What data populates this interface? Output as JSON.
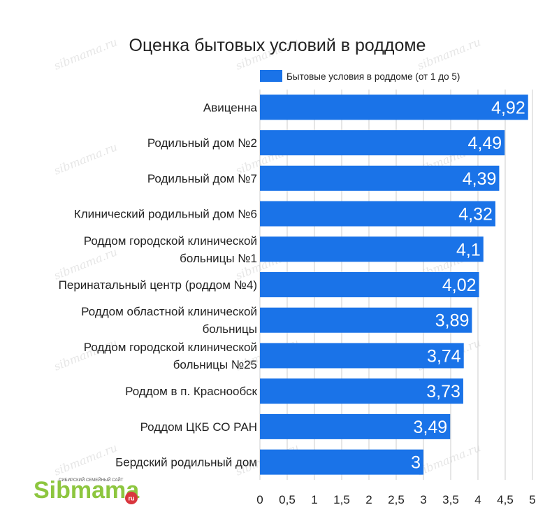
{
  "chart_data": {
    "type": "bar",
    "orientation": "horizontal",
    "title": "Оценка бытовых условий в роддоме",
    "xlabel": "",
    "ylabel": "",
    "categories": [
      "Авиценна",
      "Родильный дом №2",
      "Родильный дом №7",
      "Клинический родильный дом №6",
      "Роддом городской клинической больницы №1",
      "Перинатальный центр (роддом №4)",
      "Роддом областной клинической больницы",
      "Роддом городской клинической больницы №25",
      "Роддом в п. Краснообск",
      "Роддом ЦКБ СО РАН",
      "Бердский родильный дом"
    ],
    "category_lines": [
      [
        "Авиценна"
      ],
      [
        "Родильный дом №2"
      ],
      [
        "Родильный дом №7"
      ],
      [
        "Клинический родильный дом №6"
      ],
      [
        "Роддом городской клинической",
        "больницы №1"
      ],
      [
        "Перинатальный центр (роддом №4)"
      ],
      [
        "Роддом областной клинической",
        "больницы"
      ],
      [
        "Роддом городской клинической",
        "больницы №25"
      ],
      [
        "Роддом в п. Краснообск"
      ],
      [
        "Роддом ЦКБ СО РАН"
      ],
      [
        "Бердский родильный дом"
      ]
    ],
    "series": [
      {
        "name": "Бытовые условия в роддоме (от 1 до 5)",
        "values": [
          4.92,
          4.49,
          4.39,
          4.32,
          4.1,
          4.02,
          3.89,
          3.74,
          3.73,
          3.49,
          3
        ],
        "value_labels": [
          "4,92",
          "4,49",
          "4,39",
          "4,32",
          "4,1",
          "4,02",
          "3,89",
          "3,74",
          "3,73",
          "3,49",
          "3"
        ]
      }
    ],
    "xlim": [
      0,
      5
    ],
    "x_ticks": [
      0,
      0.5,
      1,
      1.5,
      2,
      2.5,
      3,
      3.5,
      4,
      4.5,
      5
    ],
    "x_tick_labels": [
      "0",
      "0,5",
      "1",
      "1,5",
      "2",
      "2,5",
      "3",
      "3,5",
      "4",
      "4,5",
      "5"
    ],
    "grid": true,
    "legend": "top-right",
    "colors": {
      "bar": "#1a73e8",
      "grid": "#cccccc",
      "text": "#222222",
      "value_label": "#ffffff"
    }
  },
  "branding": {
    "logo_text": "Sibmama",
    "logo_tagline": "СИБИРСКИЙ СЕМЕЙНЫЙ САЙТ",
    "logo_domain": "ru",
    "watermark_text": "sibmama.ru",
    "logo_green": "#8dc63f",
    "logo_red": "#d9363e"
  }
}
